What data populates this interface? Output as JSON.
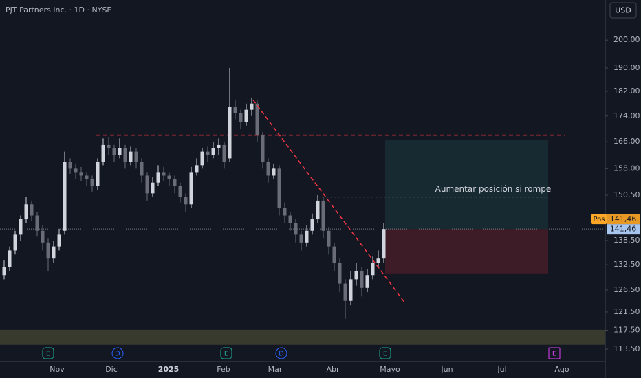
{
  "chart_data": {
    "type": "candlestick",
    "title": "PJT Partners Inc. · 1D · NYSE",
    "currency": "USD",
    "log_scale": true,
    "ylim": [
      111.1,
      215.2
    ],
    "yticks": [
      {
        "value": 200,
        "label": "200,00"
      },
      {
        "value": 190,
        "label": "190,00"
      },
      {
        "value": 182,
        "label": "182,00"
      },
      {
        "value": 174,
        "label": "174,00"
      },
      {
        "value": 166,
        "label": "166,00"
      },
      {
        "value": 158,
        "label": "158,00"
      },
      {
        "value": 150.5,
        "label": "150,50"
      },
      {
        "value": 138.5,
        "label": "138,50"
      },
      {
        "value": 132.5,
        "label": "132,50"
      },
      {
        "value": 126.5,
        "label": "126,50"
      },
      {
        "value": 121.5,
        "label": "121,50"
      },
      {
        "value": 117.5,
        "label": "117,50"
      },
      {
        "value": 113.5,
        "label": "113,50"
      }
    ],
    "xlabels": [
      "Nov",
      "Dic",
      "2025",
      "Feb",
      "Mar",
      "Abr",
      "Mayo",
      "Jun",
      "Jul",
      "Ago"
    ],
    "up_color": "#d1d4dc",
    "down_color": "#6a6d78",
    "ohlc": [
      [
        130,
        133.5,
        129,
        132
      ],
      [
        132,
        137,
        131,
        136
      ],
      [
        136,
        141,
        135,
        140
      ],
      [
        140,
        145,
        138.5,
        144
      ],
      [
        144,
        150,
        143,
        148
      ],
      [
        148,
        149,
        143.5,
        145
      ],
      [
        145,
        146,
        139.5,
        141
      ],
      [
        141,
        142.5,
        136,
        138
      ],
      [
        138,
        139,
        131,
        134
      ],
      [
        134,
        138.5,
        133,
        137
      ],
      [
        137,
        141.5,
        136,
        140
      ],
      [
        141,
        163,
        140,
        160
      ],
      [
        160,
        161,
        156.5,
        158
      ],
      [
        158,
        159.5,
        155,
        157
      ],
      [
        157,
        158.5,
        154.5,
        156
      ],
      [
        156,
        157,
        153,
        155
      ],
      [
        155,
        156,
        151.5,
        153
      ],
      [
        153,
        161,
        152,
        160
      ],
      [
        160,
        167,
        159,
        165
      ],
      [
        165,
        167.5,
        162,
        164
      ],
      [
        164,
        165,
        160,
        162
      ],
      [
        162,
        167,
        161,
        164
      ],
      [
        164,
        165,
        158,
        160
      ],
      [
        160,
        164.5,
        159,
        163
      ],
      [
        163,
        164,
        158,
        160
      ],
      [
        160,
        161,
        154,
        156
      ],
      [
        156,
        157,
        149,
        151
      ],
      [
        151,
        155.5,
        150,
        154
      ],
      [
        154,
        159,
        153,
        157
      ],
      [
        157,
        158.5,
        154.5,
        156
      ],
      [
        156,
        157,
        153,
        155
      ],
      [
        155,
        156,
        151,
        153
      ],
      [
        153,
        154,
        148.5,
        150
      ],
      [
        150,
        151,
        146,
        148
      ],
      [
        148,
        158.5,
        147,
        157
      ],
      [
        157,
        161,
        156,
        159
      ],
      [
        159,
        164,
        158,
        163
      ],
      [
        163,
        164.5,
        160,
        162
      ],
      [
        162,
        166,
        161,
        164
      ],
      [
        164,
        167,
        162,
        165
      ],
      [
        165,
        166,
        158,
        160
      ],
      [
        161,
        190,
        160,
        177
      ],
      [
        177,
        179,
        173,
        175
      ],
      [
        175,
        176,
        170,
        172
      ],
      [
        172,
        178,
        171,
        176
      ],
      [
        176,
        180,
        174,
        178
      ],
      [
        178,
        179,
        166,
        168
      ],
      [
        168,
        169,
        158,
        160
      ],
      [
        160,
        161,
        154,
        156
      ],
      [
        156,
        159.5,
        155,
        158
      ],
      [
        158,
        159,
        145,
        147
      ],
      [
        147,
        148.5,
        143,
        145
      ],
      [
        145,
        146,
        141,
        143
      ],
      [
        143,
        144,
        138,
        140
      ],
      [
        140,
        141,
        136,
        138
      ],
      [
        138,
        142.5,
        137,
        141
      ],
      [
        141,
        145.5,
        140,
        144
      ],
      [
        144,
        150.5,
        143,
        149
      ],
      [
        149,
        150,
        139,
        141
      ],
      [
        141,
        142,
        135,
        137
      ],
      [
        137,
        138,
        131,
        133
      ],
      [
        133,
        134,
        126,
        128
      ],
      [
        128,
        129,
        120,
        124
      ],
      [
        124,
        131,
        123,
        129
      ],
      [
        129,
        133,
        127.5,
        131
      ],
      [
        131,
        132,
        125,
        127
      ],
      [
        127,
        131.5,
        126,
        130
      ],
      [
        130,
        134.5,
        129,
        133
      ],
      [
        133,
        136,
        132,
        134
      ],
      [
        134,
        143,
        133,
        141.46
      ]
    ],
    "last_price": {
      "value": 141.46,
      "label": "141,46"
    },
    "resistance": {
      "value": 168,
      "color": "#f23645"
    },
    "trendline": {
      "values": [
        179.2,
        123.7
      ],
      "color": "#f23645"
    },
    "breakout_level": {
      "value": 150,
      "label": "Aumentar posición si rompe"
    },
    "position": {
      "label": "Pos",
      "entry": {
        "value": 141.46,
        "label": "141,46"
      },
      "target": 166.5,
      "stop": 130.4
    },
    "zone": {
      "values": [
        114.4,
        117.6
      ],
      "color": "#4a4a33"
    },
    "events": [
      {
        "label": "E",
        "color": "#22ab94"
      },
      {
        "label": "D",
        "color": "#2962ff"
      },
      {
        "label": "E",
        "color": "#22ab94"
      },
      {
        "label": "D",
        "color": "#2962ff"
      },
      {
        "label": "E",
        "color": "#22ab94"
      },
      {
        "label": "E",
        "color": "#e040fb"
      }
    ]
  }
}
